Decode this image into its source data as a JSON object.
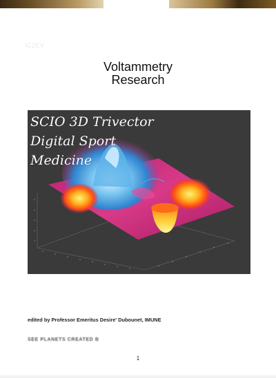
{
  "document": {
    "faint_header": "IC2EV",
    "title_line1": "Voltammetry",
    "title_line2": "Research",
    "cover": {
      "line1": "SCIO 3D Trivector",
      "line2": "Digital Sport",
      "line3": "Medicine",
      "background_color": "#3a3a3a",
      "surface_colors": [
        "#c8287a",
        "#e0409a",
        "#f2c33a",
        "#ff7a1a",
        "#3aa0e0",
        "#9fd8f6"
      ]
    },
    "editor_credit": "edited by Professor Emeritus Desire' Dubounet, IMUNE",
    "blurred_line": "SEE PLANETS CREATED B",
    "page_number": "1"
  }
}
